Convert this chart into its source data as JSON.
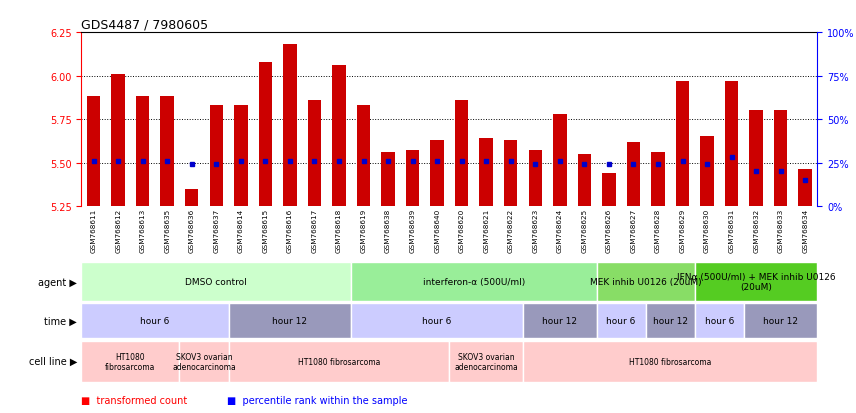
{
  "title": "GDS4487 / 7980605",
  "samples": [
    "GSM768611",
    "GSM768612",
    "GSM768613",
    "GSM768635",
    "GSM768636",
    "GSM768637",
    "GSM768614",
    "GSM768615",
    "GSM768616",
    "GSM768617",
    "GSM768618",
    "GSM768619",
    "GSM768638",
    "GSM768639",
    "GSM768640",
    "GSM768620",
    "GSM768621",
    "GSM768622",
    "GSM768623",
    "GSM768624",
    "GSM768625",
    "GSM768626",
    "GSM768627",
    "GSM768628",
    "GSM768629",
    "GSM768630",
    "GSM768631",
    "GSM768632",
    "GSM768633",
    "GSM768634"
  ],
  "transformed_count": [
    5.88,
    6.01,
    5.88,
    5.88,
    5.35,
    5.83,
    5.83,
    6.08,
    6.18,
    5.86,
    6.06,
    5.83,
    5.56,
    5.57,
    5.63,
    5.86,
    5.64,
    5.63,
    5.57,
    5.78,
    5.55,
    5.44,
    5.62,
    5.56,
    5.97,
    5.65,
    5.97,
    5.8,
    5.8,
    5.46
  ],
  "percentile_rank": [
    26,
    26,
    26,
    26,
    24,
    24,
    26,
    26,
    26,
    26,
    26,
    26,
    26,
    26,
    26,
    26,
    26,
    26,
    24,
    26,
    24,
    24,
    24,
    24,
    26,
    24,
    28,
    20,
    20,
    15
  ],
  "ylim_left": [
    5.25,
    6.25
  ],
  "ylim_right": [
    0,
    100
  ],
  "yticks_left": [
    5.25,
    5.5,
    5.75,
    6.0,
    6.25
  ],
  "yticks_right": [
    0,
    25,
    50,
    75,
    100
  ],
  "bar_color": "#cc0000",
  "dot_color": "#0000cc",
  "agent_blocks": [
    {
      "label": "DMSO control",
      "start": 0,
      "end": 11,
      "color": "#ccffcc"
    },
    {
      "label": "interferon-α (500U/ml)",
      "start": 11,
      "end": 21,
      "color": "#99ee99"
    },
    {
      "label": "MEK inhib U0126 (20uM)",
      "start": 21,
      "end": 25,
      "color": "#88dd66"
    },
    {
      "label": "IFNα (500U/ml) + MEK inhib U0126\n(20uM)",
      "start": 25,
      "end": 30,
      "color": "#55cc22"
    }
  ],
  "time_blocks": [
    {
      "label": "hour 6",
      "start": 0,
      "end": 6,
      "color": "#ccccff"
    },
    {
      "label": "hour 12",
      "start": 6,
      "end": 11,
      "color": "#9999bb"
    },
    {
      "label": "hour 6",
      "start": 11,
      "end": 18,
      "color": "#ccccff"
    },
    {
      "label": "hour 12",
      "start": 18,
      "end": 21,
      "color": "#9999bb"
    },
    {
      "label": "hour 6",
      "start": 21,
      "end": 23,
      "color": "#ccccff"
    },
    {
      "label": "hour 12",
      "start": 23,
      "end": 25,
      "color": "#9999bb"
    },
    {
      "label": "hour 6",
      "start": 25,
      "end": 27,
      "color": "#ccccff"
    },
    {
      "label": "hour 12",
      "start": 27,
      "end": 30,
      "color": "#9999bb"
    }
  ],
  "cell_blocks": [
    {
      "label": "HT1080\nfibrosarcoma",
      "start": 0,
      "end": 4,
      "color": "#ffcccc"
    },
    {
      "label": "SKOV3 ovarian\nadenocarcinoma",
      "start": 4,
      "end": 6,
      "color": "#ffcccc"
    },
    {
      "label": "HT1080 fibrosarcoma",
      "start": 6,
      "end": 15,
      "color": "#ffcccc"
    },
    {
      "label": "SKOV3 ovarian\nadenocarcinoma",
      "start": 15,
      "end": 18,
      "color": "#ffcccc"
    },
    {
      "label": "HT1080 fibrosarcoma",
      "start": 18,
      "end": 30,
      "color": "#ffcccc"
    }
  ]
}
